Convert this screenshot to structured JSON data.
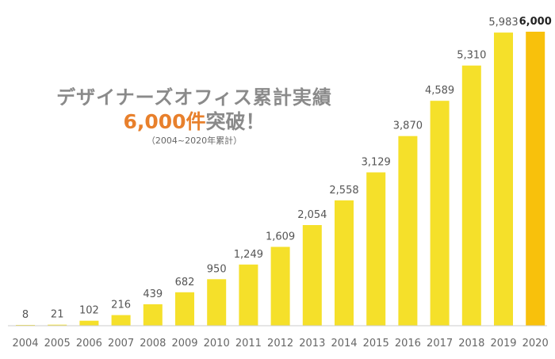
{
  "chart_data": {
    "type": "bar",
    "title": "デザイナーズオフィス累計実績",
    "subtitle_value": "6,000件",
    "subtitle_suffix": "突破！",
    "note": "（2004~2020年累計）",
    "categories": [
      "2004",
      "2005",
      "2006",
      "2007",
      "2008",
      "2009",
      "2010",
      "2011",
      "2012",
      "2013",
      "2014",
      "2015",
      "2016",
      "2017",
      "2018",
      "2019",
      "2020"
    ],
    "values": [
      8,
      21,
      102,
      216,
      439,
      682,
      950,
      1249,
      1609,
      2054,
      2558,
      3129,
      3870,
      4589,
      5310,
      5983,
      6000
    ],
    "value_labels": [
      "8",
      "21",
      "102",
      "216",
      "439",
      "682",
      "950",
      "1,249",
      "1,609",
      "2,054",
      "2,558",
      "3,129",
      "3,870",
      "4,589",
      "5,310",
      "5,983",
      "6,000"
    ],
    "ylim": [
      0,
      6000
    ],
    "xlabel": "",
    "ylabel": "",
    "grid": false,
    "legend": "none",
    "highlight_index": 16
  },
  "colors": {
    "bar": "#f5e02a",
    "highlight_bar": "#f8c10c",
    "axis": "#cccccc",
    "label": "#555555",
    "highlight_label": "#222222",
    "tick": "#666666"
  }
}
